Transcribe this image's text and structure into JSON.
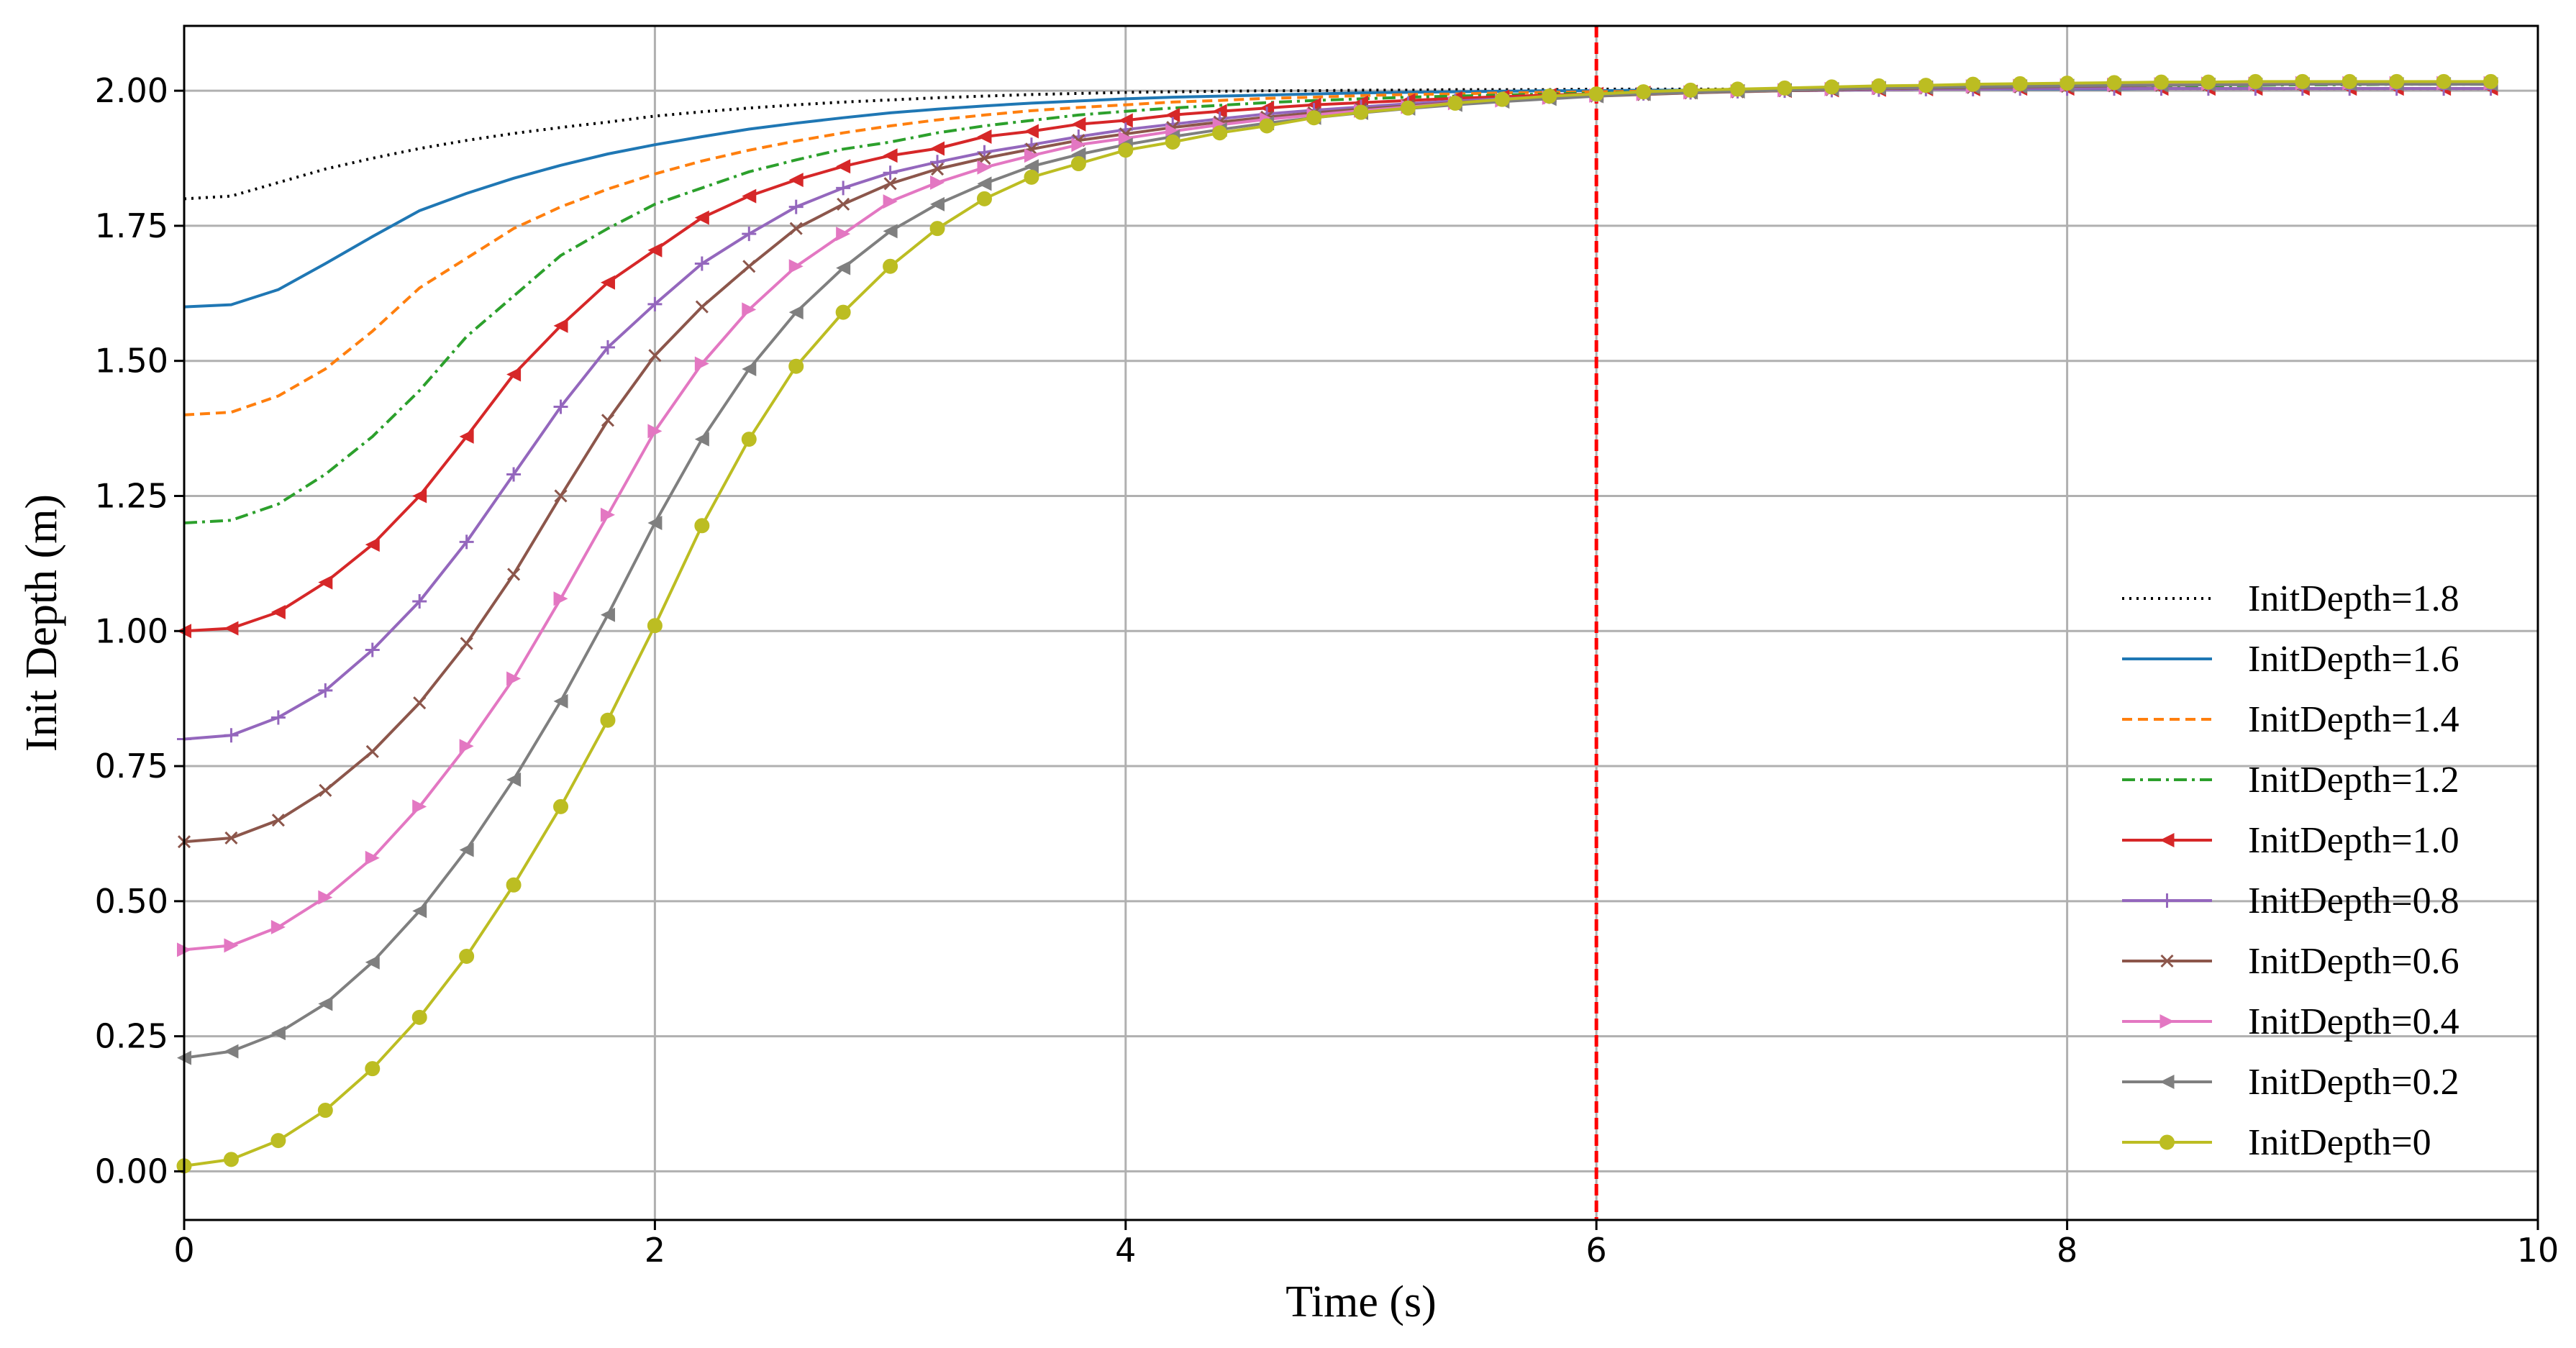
{
  "chart_data": {
    "type": "line",
    "title": "",
    "xlabel": "Time (s)",
    "ylabel": "Init Depth (m)",
    "xlim": [
      0,
      10
    ],
    "ylim": [
      -0.09,
      2.12
    ],
    "xticks": [
      0,
      2,
      4,
      6,
      8,
      10
    ],
    "xtick_labels": [
      "0",
      "2",
      "4",
      "6",
      "8",
      "10"
    ],
    "yticks": [
      0,
      0.25,
      0.5,
      0.75,
      1.0,
      1.25,
      1.5,
      1.75,
      2.0
    ],
    "ytick_labels": [
      "0.00",
      "0.25",
      "0.50",
      "0.75",
      "1.00",
      "1.25",
      "1.50",
      "1.75",
      "2.00"
    ],
    "grid": true,
    "legend_position": "right",
    "vline": {
      "x": 6,
      "color": "#ff0000",
      "style": "dashed"
    },
    "x": [
      0,
      0.2,
      0.4,
      0.6,
      0.8,
      1.0,
      1.2,
      1.4,
      1.6,
      1.8,
      2.0,
      2.2,
      2.4,
      2.6,
      2.8,
      3.0,
      3.2,
      3.4,
      3.6,
      3.8,
      4.0,
      4.2,
      4.4,
      4.6,
      4.8,
      5.0,
      5.2,
      5.4,
      5.6,
      5.8,
      6.0,
      6.2,
      6.4,
      6.6,
      6.8,
      7.0,
      7.2,
      7.4,
      7.6,
      7.8,
      8.0,
      8.2,
      8.4,
      8.6,
      8.8,
      9.0,
      9.2,
      9.4,
      9.6,
      9.8
    ],
    "series": [
      {
        "name": "InitDepth=1.8",
        "color": "#000000",
        "dash": "3,7",
        "marker": "none",
        "values": [
          1.8,
          1.805,
          1.83,
          1.855,
          1.875,
          1.893,
          1.908,
          1.921,
          1.932,
          1.942,
          1.953,
          1.961,
          1.968,
          1.974,
          1.979,
          1.983,
          1.987,
          1.99,
          1.993,
          1.995,
          1.997,
          1.998,
          1.999,
          2.0,
          2.0,
          2.001,
          2.001,
          2.002,
          2.002,
          2.002,
          2.003,
          2.003,
          2.003,
          2.003,
          2.003,
          2.004,
          2.004,
          2.004,
          2.004,
          2.004,
          2.004,
          2.004,
          2.004,
          2.004,
          2.004,
          2.004,
          2.004,
          2.004,
          2.004,
          2.004
        ]
      },
      {
        "name": "InitDepth=1.6",
        "color": "#1f77b4",
        "dash": "",
        "marker": "none",
        "values": [
          1.6,
          1.604,
          1.632,
          1.68,
          1.73,
          1.778,
          1.81,
          1.838,
          1.862,
          1.883,
          1.9,
          1.915,
          1.929,
          1.94,
          1.95,
          1.959,
          1.966,
          1.972,
          1.977,
          1.981,
          1.985,
          1.988,
          1.99,
          1.992,
          1.994,
          1.996,
          1.997,
          1.998,
          1.999,
          2.0,
          2.0,
          2.001,
          2.001,
          2.002,
          2.002,
          2.002,
          2.003,
          2.003,
          2.003,
          2.003,
          2.003,
          2.003,
          2.004,
          2.004,
          2.004,
          2.004,
          2.004,
          2.004,
          2.004,
          2.004
        ]
      },
      {
        "name": "InitDepth=1.4",
        "color": "#ff7f0e",
        "dash": "14,8",
        "marker": "none",
        "values": [
          1.4,
          1.405,
          1.435,
          1.485,
          1.555,
          1.635,
          1.69,
          1.745,
          1.785,
          1.818,
          1.846,
          1.87,
          1.89,
          1.907,
          1.922,
          1.935,
          1.946,
          1.955,
          1.963,
          1.969,
          1.974,
          1.979,
          1.982,
          1.986,
          1.988,
          1.991,
          1.993,
          1.994,
          1.996,
          1.997,
          1.998,
          1.999,
          2.0,
          2.001,
          2.002,
          2.003,
          2.004,
          2.005,
          2.006,
          2.007,
          2.008,
          2.009,
          2.01,
          2.011,
          2.012,
          2.013,
          2.013,
          2.014,
          2.014,
          2.014
        ]
      },
      {
        "name": "InitDepth=1.2",
        "color": "#2ca02c",
        "dash": "18,7,4,7",
        "marker": "none",
        "values": [
          1.2,
          1.205,
          1.235,
          1.29,
          1.36,
          1.445,
          1.545,
          1.62,
          1.695,
          1.745,
          1.79,
          1.82,
          1.85,
          1.872,
          1.892,
          1.905,
          1.922,
          1.935,
          1.945,
          1.955,
          1.962,
          1.968,
          1.973,
          1.978,
          1.982,
          1.985,
          1.988,
          1.99,
          1.992,
          1.994,
          1.996,
          1.997,
          1.998,
          1.999,
          2.0,
          2.001,
          2.002,
          2.003,
          2.004,
          2.005,
          2.006,
          2.007,
          2.008,
          2.009,
          2.01,
          2.011,
          2.011,
          2.012,
          2.012,
          2.012
        ]
      },
      {
        "name": "InitDepth=1.0",
        "color": "#d62728",
        "dash": "",
        "marker": "triangle-left",
        "values": [
          1.0,
          1.005,
          1.035,
          1.09,
          1.16,
          1.25,
          1.36,
          1.475,
          1.565,
          1.645,
          1.705,
          1.765,
          1.805,
          1.835,
          1.86,
          1.88,
          1.893,
          1.915,
          1.925,
          1.938,
          1.945,
          1.955,
          1.962,
          1.968,
          1.974,
          1.978,
          1.982,
          1.986,
          1.989,
          1.992,
          1.994,
          1.996,
          1.998,
          1.999,
          2.0,
          2.001,
          2.002,
          2.003,
          2.003,
          2.004,
          2.004,
          2.004,
          2.004,
          2.004,
          2.004,
          2.004,
          2.004,
          2.004,
          2.004,
          2.004
        ]
      },
      {
        "name": "InitDepth=0.8",
        "color": "#9467bd",
        "dash": "",
        "marker": "plus",
        "values": [
          0.8,
          0.807,
          0.84,
          0.89,
          0.965,
          1.055,
          1.165,
          1.29,
          1.415,
          1.525,
          1.605,
          1.68,
          1.735,
          1.785,
          1.82,
          1.848,
          1.868,
          1.886,
          1.9,
          1.915,
          1.928,
          1.938,
          1.948,
          1.957,
          1.964,
          1.97,
          1.976,
          1.981,
          1.985,
          1.989,
          1.992,
          1.995,
          1.997,
          1.999,
          2.0,
          2.001,
          2.002,
          2.003,
          2.003,
          2.004,
          2.004,
          2.004,
          2.004,
          2.004,
          2.004,
          2.004,
          2.004,
          2.004,
          2.004,
          2.004
        ]
      },
      {
        "name": "InitDepth=0.6",
        "color": "#8c564b",
        "dash": "",
        "marker": "x",
        "values": [
          0.61,
          0.617,
          0.65,
          0.705,
          0.777,
          0.867,
          0.977,
          1.105,
          1.25,
          1.39,
          1.51,
          1.6,
          1.675,
          1.745,
          1.79,
          1.828,
          1.855,
          1.875,
          1.892,
          1.908,
          1.92,
          1.932,
          1.942,
          1.951,
          1.959,
          1.966,
          1.972,
          1.978,
          1.983,
          1.987,
          1.99,
          1.993,
          1.996,
          1.998,
          2.0,
          2.002,
          2.004,
          2.005,
          2.006,
          2.007,
          2.008,
          2.009,
          2.01,
          2.011,
          2.012,
          2.013,
          2.013,
          2.014,
          2.014,
          2.014
        ]
      },
      {
        "name": "InitDepth=0.4",
        "color": "#e377c2",
        "dash": "",
        "marker": "triangle-right",
        "values": [
          0.41,
          0.418,
          0.452,
          0.507,
          0.58,
          0.675,
          0.787,
          0.912,
          1.06,
          1.215,
          1.37,
          1.495,
          1.595,
          1.675,
          1.735,
          1.795,
          1.83,
          1.858,
          1.88,
          1.9,
          1.912,
          1.925,
          1.937,
          1.947,
          1.955,
          1.963,
          1.97,
          1.977,
          1.982,
          1.987,
          1.991,
          1.994,
          1.997,
          1.999,
          2.001,
          2.003,
          2.005,
          2.006,
          2.008,
          2.009,
          2.01,
          2.011,
          2.012,
          2.013,
          2.013,
          2.014,
          2.014,
          2.014,
          2.014,
          2.014
        ]
      },
      {
        "name": "InitDepth=0.2",
        "color": "#7f7f7f",
        "dash": "",
        "marker": "triangle-left",
        "values": [
          0.21,
          0.222,
          0.256,
          0.31,
          0.387,
          0.482,
          0.595,
          0.725,
          0.87,
          1.03,
          1.2,
          1.355,
          1.485,
          1.59,
          1.672,
          1.74,
          1.79,
          1.828,
          1.86,
          1.882,
          1.9,
          1.915,
          1.928,
          1.94,
          1.95,
          1.959,
          1.967,
          1.974,
          1.98,
          1.985,
          1.99,
          1.994,
          1.997,
          1.999,
          2.001,
          2.003,
          2.005,
          2.006,
          2.007,
          2.008,
          2.009,
          2.01,
          2.01,
          2.011,
          2.011,
          2.012,
          2.012,
          2.012,
          2.012,
          2.012
        ]
      },
      {
        "name": "InitDepth=0",
        "color": "#bcbd22",
        "dash": "",
        "marker": "circle",
        "values": [
          0.01,
          0.022,
          0.057,
          0.113,
          0.19,
          0.285,
          0.398,
          0.53,
          0.675,
          0.835,
          1.01,
          1.195,
          1.355,
          1.49,
          1.59,
          1.675,
          1.745,
          1.8,
          1.84,
          1.865,
          1.89,
          1.905,
          1.922,
          1.935,
          1.95,
          1.96,
          1.968,
          1.977,
          1.984,
          1.99,
          1.994,
          1.998,
          2.001,
          2.003,
          2.005,
          2.007,
          2.009,
          2.01,
          2.012,
          2.013,
          2.014,
          2.015,
          2.016,
          2.016,
          2.017,
          2.017,
          2.017,
          2.017,
          2.017,
          2.017
        ]
      }
    ]
  }
}
